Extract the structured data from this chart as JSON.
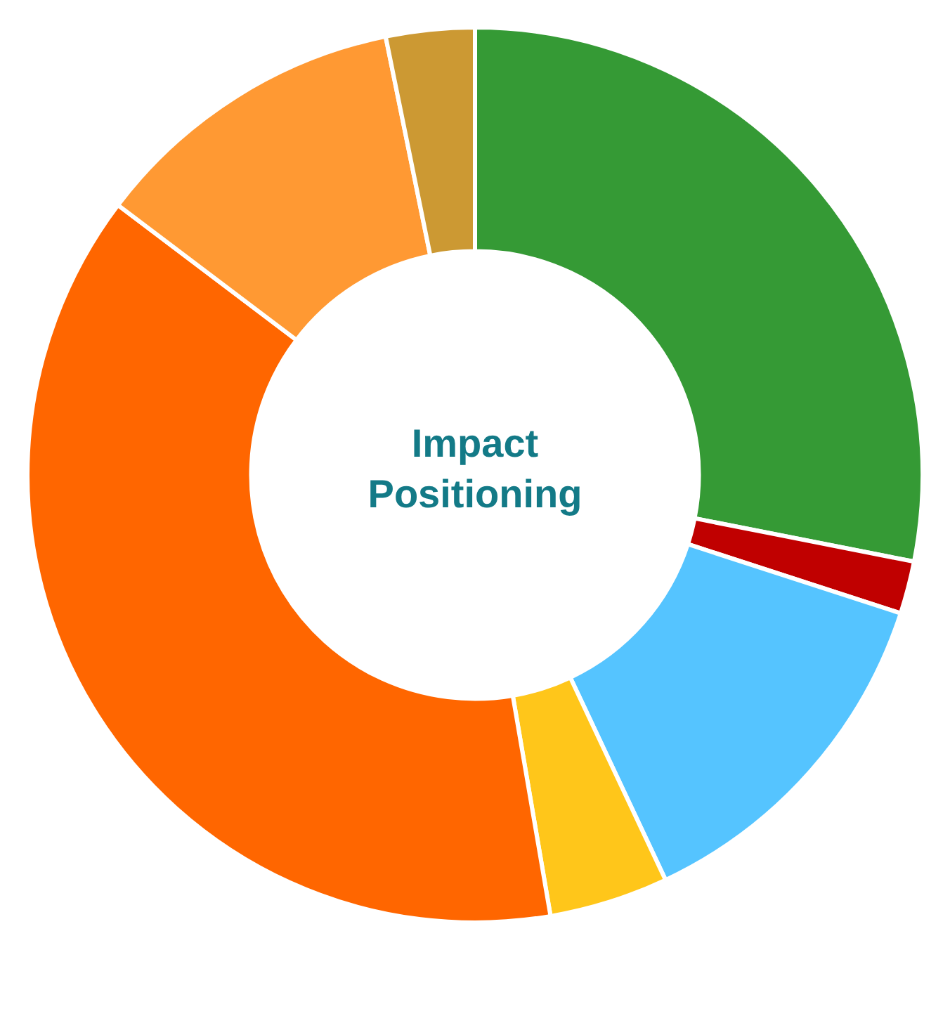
{
  "chart_data": {
    "type": "donut",
    "title": "Impact Positioning",
    "categories": [
      null,
      null,
      null,
      null,
      null,
      null,
      null
    ],
    "values": [
      28.1,
      1.9,
      13.0,
      4.3,
      38.0,
      11.5,
      3.2
    ],
    "colors": [
      "#359a35",
      "#c00000",
      "#55c4ff",
      "#ffc61a",
      "#ff6600",
      "#ff9933",
      "#cc9933"
    ],
    "legend": false
  }
}
